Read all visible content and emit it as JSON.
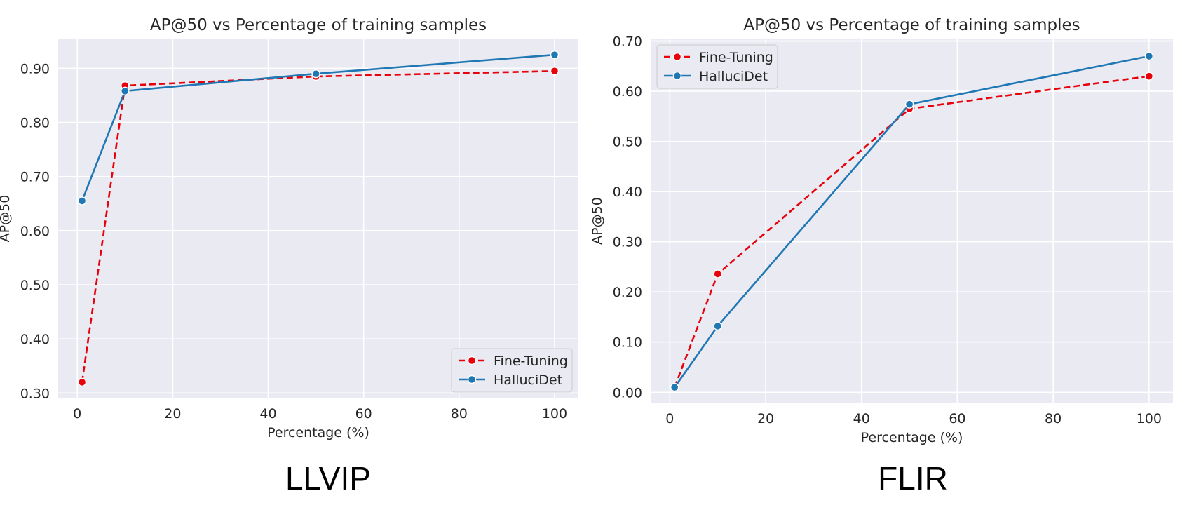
{
  "chart_data": [
    {
      "type": "line",
      "title": "AP@50 vs Percentage of training samples",
      "xlabel": "Percentage (%)",
      "ylabel": "AP@50",
      "caption": "LLVIP",
      "xlim": [
        -4,
        105
      ],
      "ylim": [
        0.29,
        0.955
      ],
      "xticks": [
        0,
        20,
        40,
        60,
        80,
        100
      ],
      "xtick_labels": [
        "0",
        "20",
        "40",
        "60",
        "80",
        "100"
      ],
      "yticks": [
        0.3,
        0.4,
        0.5,
        0.6,
        0.7,
        0.8,
        0.9
      ],
      "ytick_labels": [
        "0.30",
        "0.40",
        "0.50",
        "0.60",
        "0.70",
        "0.80",
        "0.90"
      ],
      "grid": true,
      "legend_position": "bottom-right",
      "series": [
        {
          "name": "Fine-Tuning",
          "color": "#e8000b",
          "dashed": true,
          "x": [
            1,
            10,
            50,
            100
          ],
          "y": [
            0.32,
            0.868,
            0.885,
            0.895
          ]
        },
        {
          "name": "HalluciDet",
          "color": "#1f77b4",
          "dashed": false,
          "x": [
            1,
            10,
            50,
            100
          ],
          "y": [
            0.655,
            0.858,
            0.89,
            0.925
          ]
        }
      ]
    },
    {
      "type": "line",
      "title": "AP@50 vs Percentage of training samples",
      "xlabel": "Percentage (%)",
      "ylabel": "AP@50",
      "caption": "FLIR",
      "xlim": [
        -4,
        105
      ],
      "ylim": [
        -0.022,
        0.705
      ],
      "xticks": [
        0,
        20,
        40,
        60,
        80,
        100
      ],
      "xtick_labels": [
        "0",
        "20",
        "40",
        "60",
        "80",
        "100"
      ],
      "yticks": [
        0.0,
        0.1,
        0.2,
        0.3,
        0.4,
        0.5,
        0.6,
        0.7
      ],
      "ytick_labels": [
        "0.00",
        "0.10",
        "0.20",
        "0.30",
        "0.40",
        "0.50",
        "0.60",
        "0.70"
      ],
      "grid": true,
      "legend_position": "top-left",
      "series": [
        {
          "name": "Fine-Tuning",
          "color": "#e8000b",
          "dashed": true,
          "x": [
            1,
            10,
            50,
            100
          ],
          "y": [
            0.01,
            0.236,
            0.565,
            0.63
          ]
        },
        {
          "name": "HalluciDet",
          "color": "#1f77b4",
          "dashed": false,
          "x": [
            1,
            10,
            50,
            100
          ],
          "y": [
            0.01,
            0.132,
            0.574,
            0.67
          ]
        }
      ]
    }
  ]
}
